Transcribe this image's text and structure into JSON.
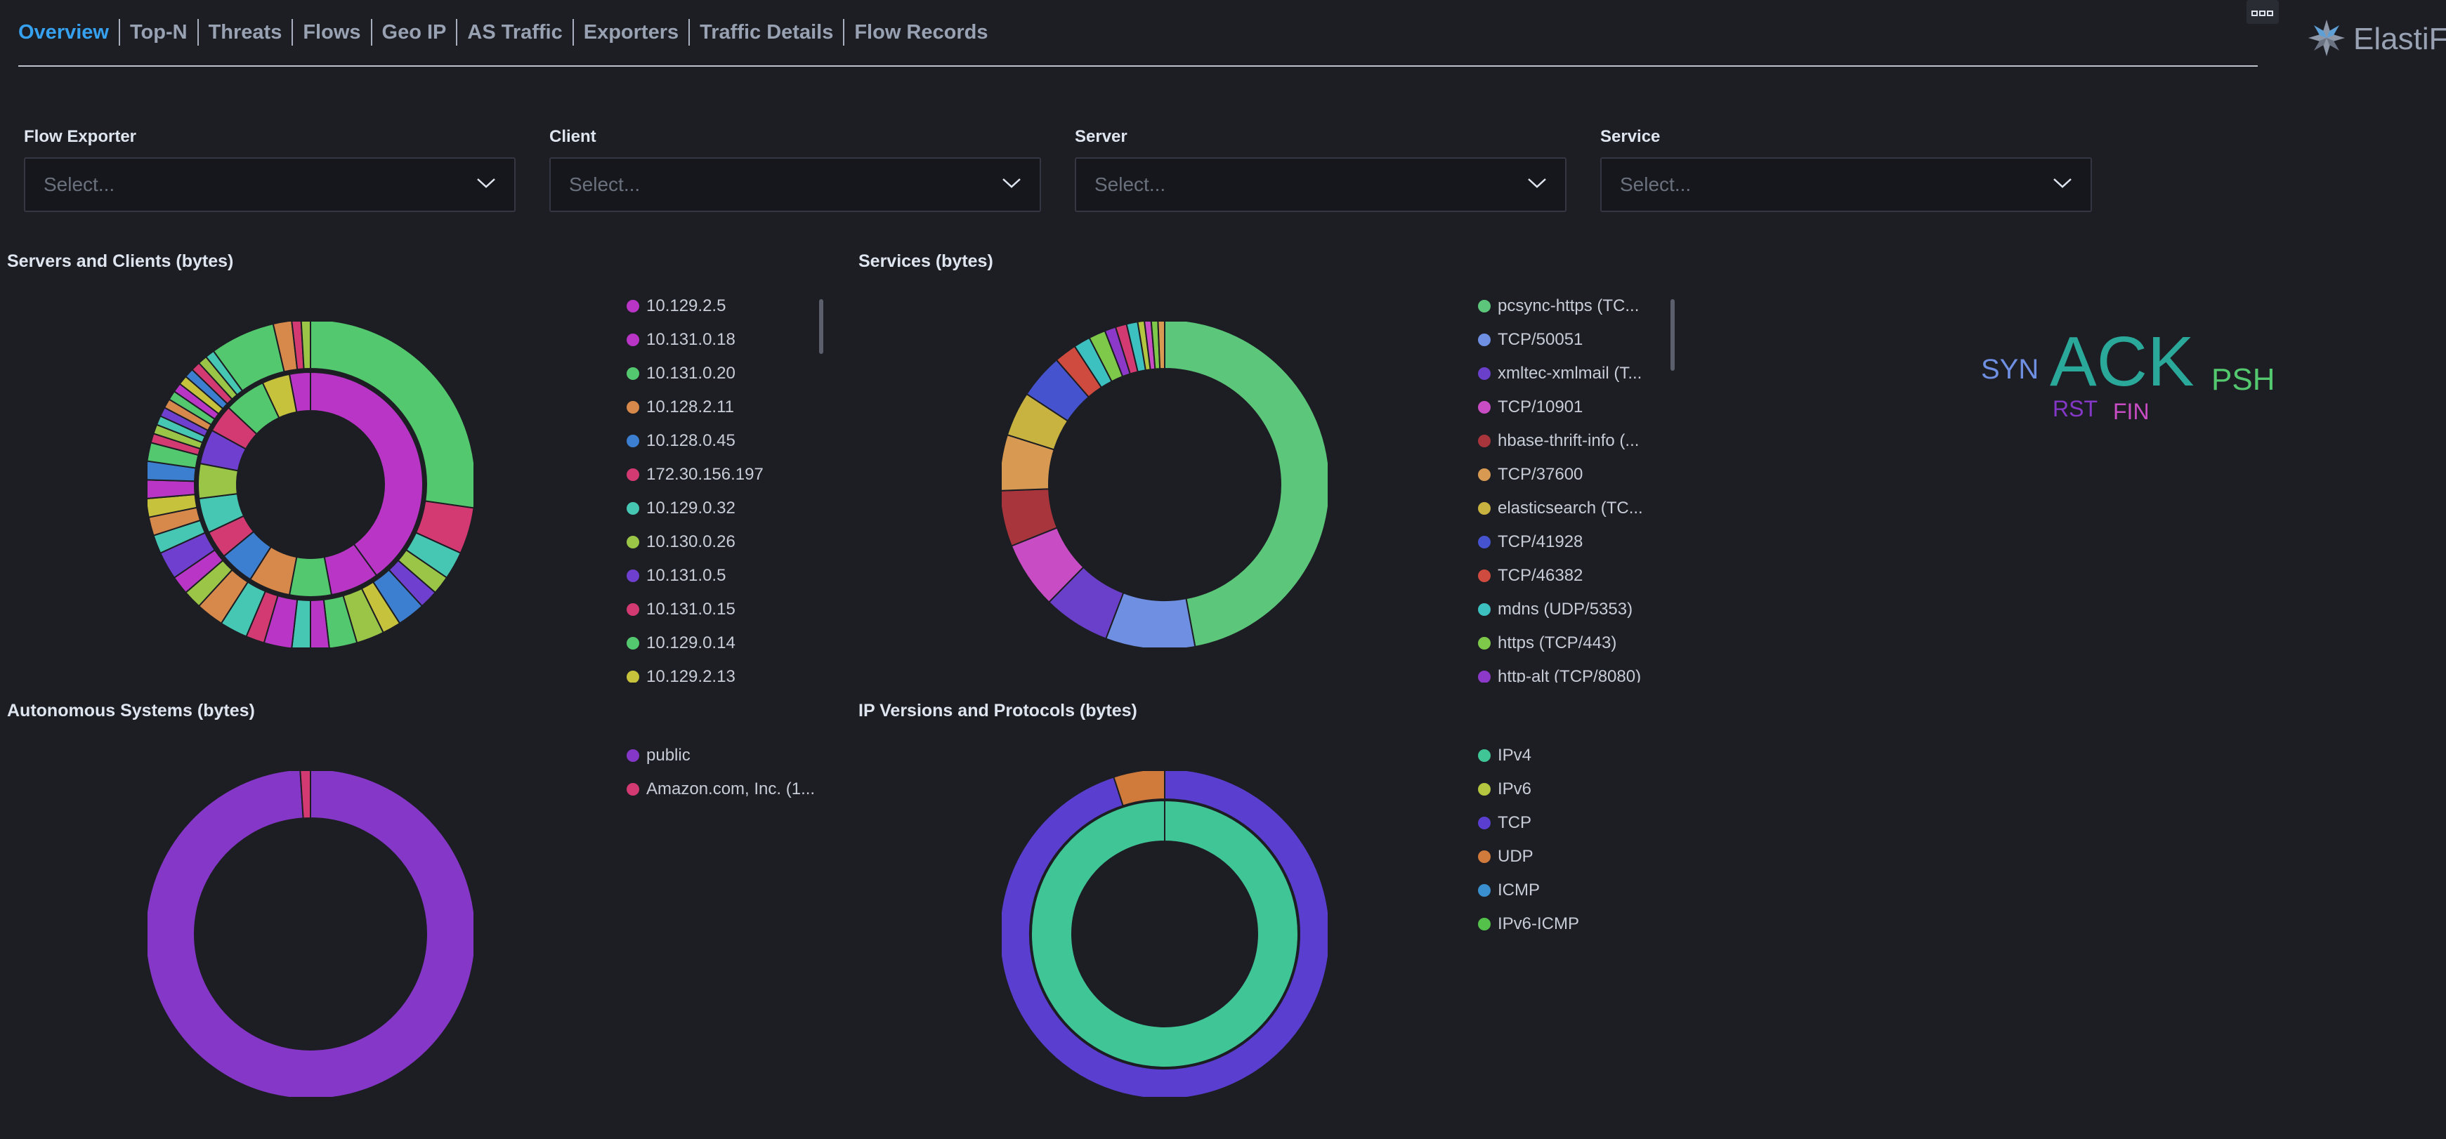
{
  "nav": {
    "tabs": [
      {
        "label": "Overview",
        "active": true
      },
      {
        "label": "Top-N"
      },
      {
        "label": "Threats"
      },
      {
        "label": "Flows"
      },
      {
        "label": "Geo IP"
      },
      {
        "label": "AS Traffic"
      },
      {
        "label": "Exporters"
      },
      {
        "label": "Traffic Details"
      },
      {
        "label": "Flow Records"
      }
    ]
  },
  "menu_icon": "ellipsis-icon",
  "logo": {
    "text": "ElastiFlo",
    "icon": "elastiflow-logo-icon"
  },
  "filters": [
    {
      "label": "Flow Exporter",
      "placeholder": "Select..."
    },
    {
      "label": "Client",
      "placeholder": "Select..."
    },
    {
      "label": "Server",
      "placeholder": "Select..."
    },
    {
      "label": "Service",
      "placeholder": "Select..."
    }
  ],
  "colors": {
    "background": "#1d1e24",
    "active_tab": "#36a2ef",
    "green": "#54c86e",
    "magenta": "#b935c6",
    "pink": "#d33a72",
    "teal": "#46c7b3",
    "orange": "#d6894a",
    "blue": "#3c7fd0",
    "lime": "#9ac547",
    "purple": "#6f3fcf",
    "violet": "#8537c8",
    "indigo": "#5a3ed0"
  },
  "panels": {
    "servers_clients": {
      "title": "Servers and Clients (bytes)",
      "legend": [
        {
          "label": "10.129.2.5",
          "color": "#b935c6"
        },
        {
          "label": "10.131.0.18",
          "color": "#b935c6"
        },
        {
          "label": "10.131.0.20",
          "color": "#54c86e"
        },
        {
          "label": "10.128.2.11",
          "color": "#d6894a"
        },
        {
          "label": "10.128.0.45",
          "color": "#3c7fd0"
        },
        {
          "label": "172.30.156.197",
          "color": "#d33a72"
        },
        {
          "label": "10.129.0.32",
          "color": "#46c7b3"
        },
        {
          "label": "10.130.0.26",
          "color": "#9ac547"
        },
        {
          "label": "10.131.0.5",
          "color": "#6f3fcf"
        },
        {
          "label": "10.131.0.15",
          "color": "#d33a72"
        },
        {
          "label": "10.129.0.14",
          "color": "#54c86e"
        },
        {
          "label": "10.129.2.13",
          "color": "#c6c23c"
        }
      ]
    },
    "services": {
      "title": "Services (bytes)",
      "legend": [
        {
          "label": "pcsync-https (TC...",
          "color": "#5cc77a"
        },
        {
          "label": "TCP/50051",
          "color": "#6f8fe3"
        },
        {
          "label": "xmltec-xmlmail (T...",
          "color": "#6a3fc9"
        },
        {
          "label": "TCP/10901",
          "color": "#c84dc4"
        },
        {
          "label": "hbase-thrift-info (...",
          "color": "#a8343c"
        },
        {
          "label": "TCP/37600",
          "color": "#d89a52"
        },
        {
          "label": "elasticsearch (TC...",
          "color": "#c8b340"
        },
        {
          "label": "TCP/41928",
          "color": "#4653cf"
        },
        {
          "label": "TCP/46382",
          "color": "#cf4b3f"
        },
        {
          "label": "mdns (UDP/5353)",
          "color": "#3cc1c0"
        },
        {
          "label": "https (TCP/443)",
          "color": "#7ec94a"
        },
        {
          "label": "http-alt (TCP/8080)",
          "color": "#8c39c9"
        }
      ]
    },
    "autonomous_systems": {
      "title": "Autonomous Systems (bytes)",
      "legend": [
        {
          "label": "public",
          "color": "#8537c8"
        },
        {
          "label": "Amazon.com, Inc. (1...",
          "color": "#d33a72"
        }
      ]
    },
    "ip_versions": {
      "title": "IP Versions and Protocols (bytes)",
      "legend": [
        {
          "label": "IPv4",
          "color": "#40c596"
        },
        {
          "label": "IPv6",
          "color": "#b4c53f"
        },
        {
          "label": "TCP",
          "color": "#5a3ed0"
        },
        {
          "label": "UDP",
          "color": "#d07a3c"
        },
        {
          "label": "ICMP",
          "color": "#3a8fcf"
        },
        {
          "label": "IPv6-ICMP",
          "color": "#54c24a"
        }
      ]
    },
    "tcp_flags": {
      "tags": [
        {
          "text": "SYN",
          "color": "#6f8fe3"
        },
        {
          "text": "ACK",
          "color": "#2aa99a"
        },
        {
          "text": "PSH",
          "color": "#54c86e"
        },
        {
          "text": "RST",
          "color": "#8537c8"
        },
        {
          "text": "FIN",
          "color": "#c84dc4"
        }
      ]
    }
  },
  "chart_data": [
    {
      "type": "pie",
      "title": "Servers and Clients (bytes)",
      "series": [
        {
          "values": [
            40,
            7,
            6,
            6,
            5,
            4,
            5,
            5,
            5,
            4,
            6,
            4,
            3
          ],
          "colors": [
            "#b935c6",
            "#b935c6",
            "#54c86e",
            "#d6894a",
            "#3c7fd0",
            "#d33a72",
            "#46c7b3",
            "#9ac547",
            "#6f3fcf",
            "#d33a72",
            "#54c86e",
            "#c6c23c",
            "#b935c6"
          ]
        },
        {
          "values": [
            30,
            5,
            3,
            2,
            2,
            3,
            2,
            3,
            3,
            2,
            2,
            3,
            2,
            3,
            3,
            2,
            2,
            3,
            2,
            2,
            2,
            2,
            2,
            2,
            1,
            1,
            1,
            1,
            1,
            1,
            1,
            1,
            1,
            1,
            1,
            1,
            7,
            2,
            1,
            1
          ],
          "colors": [
            "#54c86e",
            "#d33a72",
            "#46c7b3",
            "#9ac547",
            "#6f3fcf",
            "#3c7fd0",
            "#c6c23c",
            "#9ac547",
            "#54c86e",
            "#b935c6",
            "#46c7b3",
            "#b935c6",
            "#d33a72",
            "#46c7b3",
            "#d6894a",
            "#9ac547",
            "#b935c6",
            "#6f3fcf",
            "#46c7b3",
            "#d6894a",
            "#c6c23c",
            "#b935c6",
            "#3c7fd0",
            "#54c86e",
            "#d33a72",
            "#9ac547",
            "#46c7b3",
            "#6f3fcf",
            "#d6894a",
            "#54c86e",
            "#b935c6",
            "#c6c23c",
            "#3c7fd0",
            "#d33a72",
            "#9ac547",
            "#46c7b3",
            "#54c86e",
            "#d6894a",
            "#d33a72",
            "#9ac547"
          ]
        }
      ]
    },
    {
      "type": "pie",
      "title": "Services (bytes)",
      "series": [
        {
          "values": [
            43,
            8,
            6,
            6,
            5,
            5,
            4,
            4,
            2,
            1.5,
            1.5,
            1,
            1,
            1,
            0.6,
            0.6,
            0.6,
            0.6
          ],
          "colors": [
            "#5cc77a",
            "#6f8fe3",
            "#6a3fc9",
            "#c84dc4",
            "#a8343c",
            "#d89a52",
            "#c8b340",
            "#4653cf",
            "#cf4b3f",
            "#3cc1c0",
            "#7ec94a",
            "#8c39c9",
            "#d33a72",
            "#3cc1c0",
            "#b4c53f",
            "#c84dc4",
            "#7ec94a",
            "#d89a52"
          ]
        }
      ]
    },
    {
      "type": "pie",
      "title": "Autonomous Systems (bytes)",
      "series": [
        {
          "values": [
            99,
            1
          ],
          "colors": [
            "#8537c8",
            "#d33a72"
          ]
        }
      ]
    },
    {
      "type": "pie",
      "title": "IP Versions and Protocols (bytes)",
      "series": [
        {
          "values": [
            100
          ],
          "colors": [
            "#40c596"
          ]
        },
        {
          "values": [
            95,
            5
          ],
          "colors": [
            "#5a3ed0",
            "#d07a3c"
          ]
        }
      ]
    }
  ]
}
